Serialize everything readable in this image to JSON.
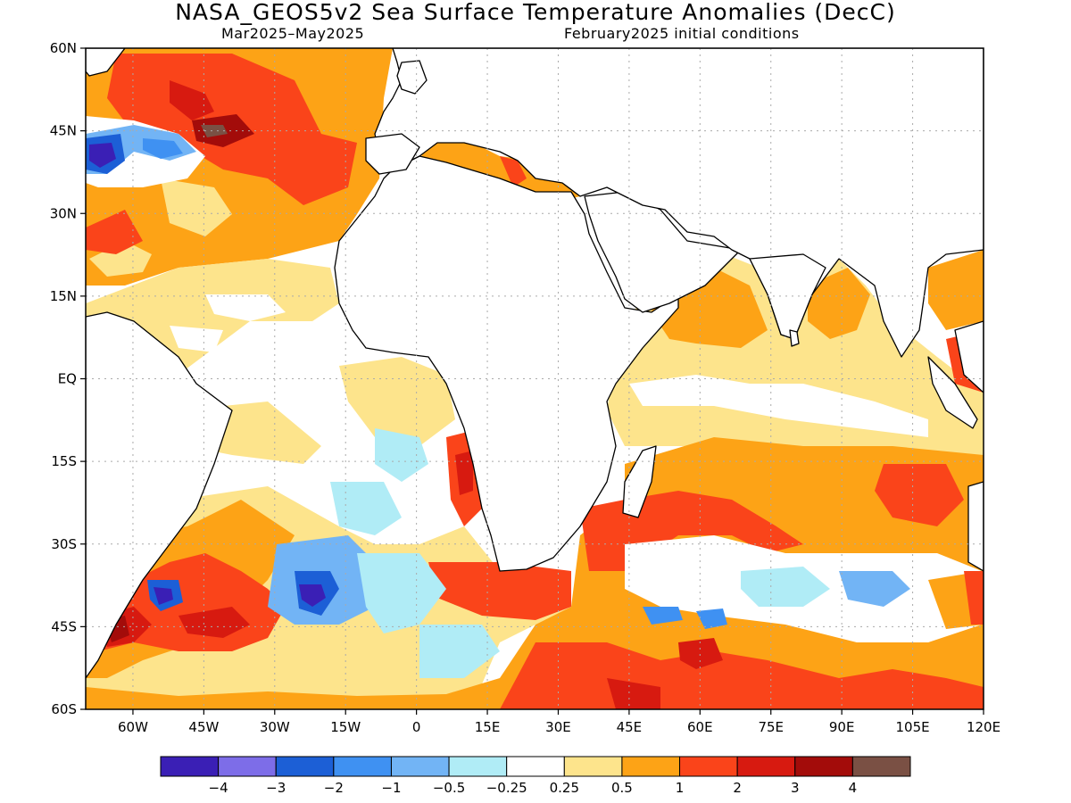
{
  "title": "NASA_GEOS5v2 Sea Surface Temperature Anomalies (DecC)",
  "subtitle_period": "Mar2025–May2025",
  "subtitle_init": "February2025 initial conditions",
  "map": {
    "projection": "equirectangular",
    "lon_range": [
      -70,
      120
    ],
    "lat_range": [
      -60,
      60
    ],
    "lat_ticks": [
      "60N",
      "45N",
      "30N",
      "15N",
      "EQ",
      "15S",
      "30S",
      "45S",
      "60S"
    ],
    "lon_ticks": [
      "60W",
      "45W",
      "30W",
      "15W",
      "0",
      "15E",
      "30E",
      "45E",
      "60E",
      "75E",
      "90E",
      "105E",
      "120E"
    ],
    "gridlines": "dotted"
  },
  "colorbar": {
    "colors": [
      "#3a1fb5",
      "#7d6de8",
      "#1c5fd6",
      "#3f91f2",
      "#72b4f5",
      "#b0ecf6",
      "#ffffff",
      "#fde48c",
      "#fda316",
      "#fa441a",
      "#d71a10",
      "#a30c0a",
      "#7a5044"
    ],
    "labels": [
      "−4",
      "−3",
      "−2",
      "−1",
      "−0.5",
      "−0.25",
      "0.25",
      "0.5",
      "1",
      "2",
      "3",
      "4"
    ]
  }
}
